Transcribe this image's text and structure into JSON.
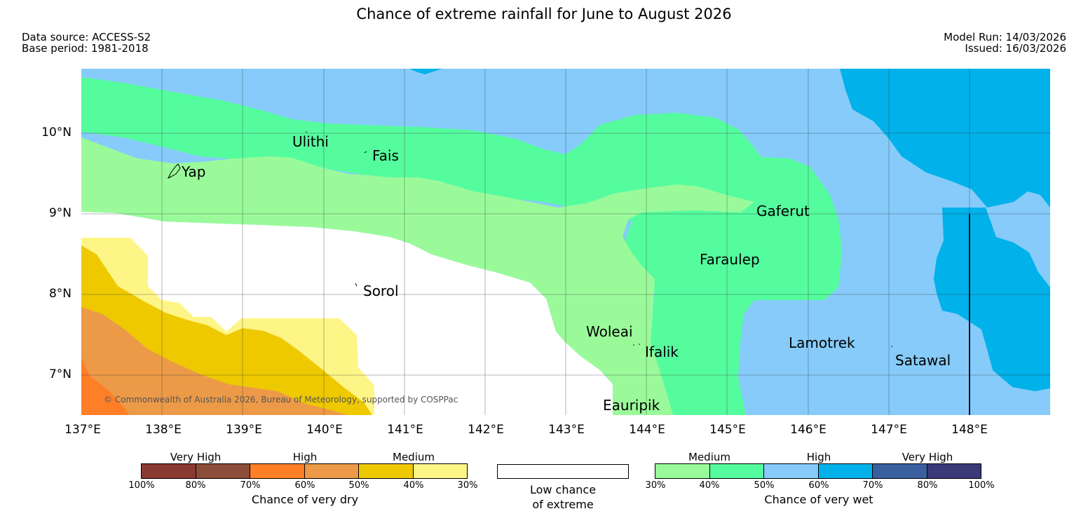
{
  "title": "Chance of extreme rainfall for June to August 2026",
  "meta": {
    "data_source": "Data source: ACCESS-S2",
    "base_period": "Base period: 1981-2018",
    "model_run": "Model Run: 14/03/2026",
    "issued": "Issued: 16/03/2026"
  },
  "map": {
    "lat_labels": [
      "10°N",
      "9°N",
      "8°N",
      "7°N"
    ],
    "lon_labels": [
      "137°E",
      "138°E",
      "139°E",
      "140°E",
      "141°E",
      "142°E",
      "143°E",
      "144°E",
      "145°E",
      "146°E",
      "147°E",
      "148°E"
    ],
    "places": {
      "ulithi": "Ulithi",
      "fais": "Fais",
      "yap": "Yap",
      "gaferut": "Gaferut",
      "faraulep": "Faraulep",
      "sorol": "Sorol",
      "woleai": "Woleai",
      "ifalik": "Ifalik",
      "lamotrek": "Lamotrek",
      "satawal": "Satawal",
      "eauripik": "Eauripik"
    },
    "copyright": "© Commonwealth of Australia 2026, Bureau of Meteorology, supported by COSPPac",
    "region_colors": {
      "dry_high_70_80": "#ff7f27",
      "dry_high_60_70": "#ec9a47",
      "dry_medium_40_50": "#eec900",
      "dry_medium_30_40": "#fef587",
      "low_chance": "#ffffff",
      "wet_medium_30_40": "#9afa9a",
      "wet_medium_40_50": "#55fc9e",
      "wet_high_50_60": "#86cbfa",
      "wet_high_60_70": "#00b1ea"
    }
  },
  "legend": {
    "dry": {
      "categories": [
        "Very High",
        "High",
        "Medium"
      ],
      "ticks": [
        "100%",
        "80%",
        "70%",
        "60%",
        "50%",
        "40%",
        "30%"
      ],
      "colors": [
        "#8b3a32",
        "#8c4d3a",
        "#ff7f27",
        "#ec9a47",
        "#eec900",
        "#fef587"
      ],
      "title": "Chance of very dry"
    },
    "low": {
      "line1": "Low chance",
      "line2": "of extreme"
    },
    "wet": {
      "categories": [
        "Medium",
        "High",
        "Very High"
      ],
      "ticks": [
        "30%",
        "40%",
        "50%",
        "60%",
        "70%",
        "80%",
        "100%"
      ],
      "colors": [
        "#9afa9a",
        "#55fc9e",
        "#86cbfa",
        "#00b1ea",
        "#3a5f9e",
        "#3a3a78"
      ],
      "title": "Chance of very wet"
    }
  }
}
